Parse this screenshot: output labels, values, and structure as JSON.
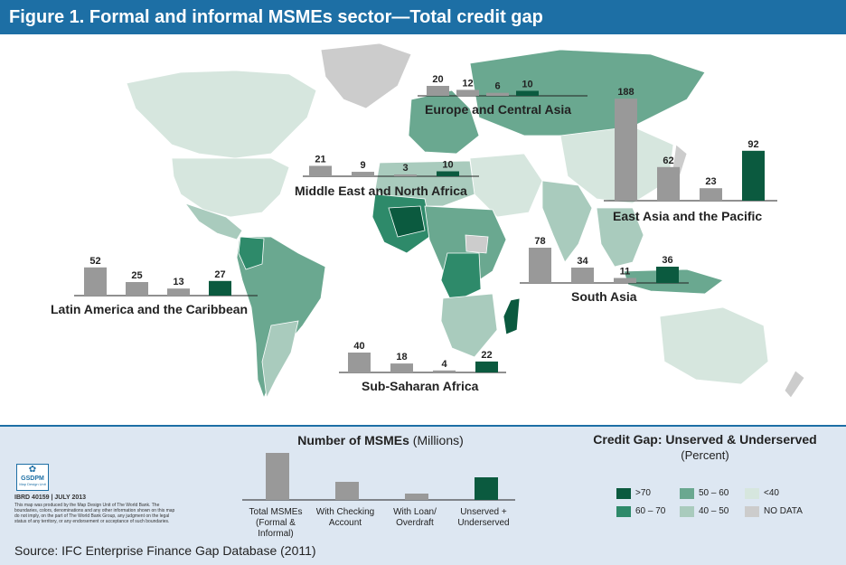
{
  "title": "Figure 1.  Formal and informal MSMEs sector—Total credit gap",
  "source": "Source: IFC Enterprise Finance Gap Database (2011)",
  "legend": {
    "number_title_bold": "Number of MSMEs",
    "number_title_unit": "(Millions)",
    "categories": [
      "Total MSMEs (Formal & Informal)",
      "With Checking Account",
      "With Loan/ Overdraft",
      "Unserved + Underserved"
    ],
    "credit_gap_title": "Credit Gap: Unserved & Underserved",
    "credit_gap_subtitle": "(Percent)",
    "classes": [
      {
        "label": ">70",
        "color": "#0b5a3f"
      },
      {
        "label": "60 – 70",
        "color": "#2e8a6a"
      },
      {
        "label": "50 – 60",
        "color": "#6aa890"
      },
      {
        "label": "40 – 50",
        "color": "#a9cbbd"
      },
      {
        "label": "<40",
        "color": "#d6e6de"
      },
      {
        "label": "NO DATA",
        "color": "#cccccc"
      }
    ],
    "bar_colors": {
      "total": "#999999",
      "checking": "#999999",
      "loan": "#999999",
      "unserved": "#0b5a3f"
    }
  },
  "logo": {
    "name": "GSDPM",
    "sub": "Map Design Unit"
  },
  "ibrd": "IBRD 40159  |  JULY 2013",
  "disclaimer": "This map was produced by the Map Design Unit of The World Bank. The boundaries, colors, denominations and any other information shown on this map do not imply, on the part of The World Bank Group, any judgment on the legal status of any territory, or any endorsement or acceptance of such boundaries.",
  "chart_data": [
    {
      "type": "bar",
      "title": "Europe and Central Asia",
      "categories": [
        "Total MSMEs",
        "With Checking Account",
        "With Loan/Overdraft",
        "Unserved + Underserved"
      ],
      "values": [
        20,
        12,
        6,
        10
      ]
    },
    {
      "type": "bar",
      "title": "Middle East and North Africa",
      "categories": [
        "Total MSMEs",
        "With Checking Account",
        "With Loan/Overdraft",
        "Unserved + Underserved"
      ],
      "values": [
        21,
        9,
        3,
        10
      ]
    },
    {
      "type": "bar",
      "title": "East Asia and the Pacific",
      "categories": [
        "Total MSMEs",
        "With Checking Account",
        "With Loan/Overdraft",
        "Unserved + Underserved"
      ],
      "values": [
        188,
        62,
        23,
        92
      ]
    },
    {
      "type": "bar",
      "title": "South Asia",
      "categories": [
        "Total MSMEs",
        "With Checking Account",
        "With Loan/Overdraft",
        "Unserved + Underserved"
      ],
      "values": [
        78,
        34,
        11,
        36
      ]
    },
    {
      "type": "bar",
      "title": "Latin America and the Caribbean",
      "categories": [
        "Total MSMEs",
        "With Checking Account",
        "With Loan/Overdraft",
        "Unserved + Underserved"
      ],
      "values": [
        52,
        25,
        13,
        27
      ]
    },
    {
      "type": "bar",
      "title": "Sub-Saharan Africa",
      "categories": [
        "Total MSMEs",
        "With Checking Account",
        "With Loan/Overdraft",
        "Unserved + Underserved"
      ],
      "values": [
        40,
        18,
        4,
        22
      ]
    }
  ]
}
